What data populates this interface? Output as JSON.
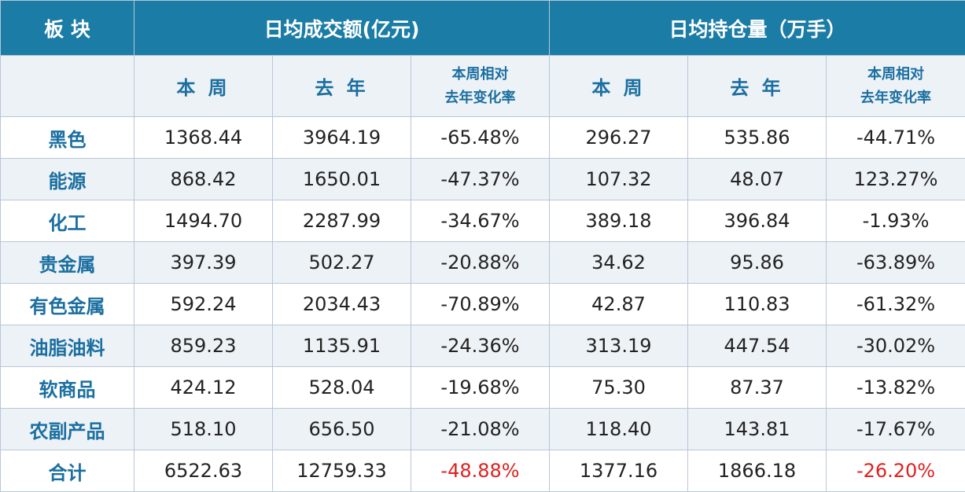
{
  "header": {
    "sector": "板 块",
    "volume_group": "日均成交额(亿元)",
    "oi_group": "日均持仓量（万手）"
  },
  "subheader": {
    "this_week": "本 周",
    "last_year": "去 年",
    "change_line1": "本周相对",
    "change_line2": "去年变化率"
  },
  "rows": [
    {
      "sector": "黑色",
      "vol_week": "1368.44",
      "vol_last": "3964.19",
      "vol_chg": "-65.48%",
      "oi_week": "296.27",
      "oi_last": "535.86",
      "oi_chg": "-44.71%"
    },
    {
      "sector": "能源",
      "vol_week": "868.42",
      "vol_last": "1650.01",
      "vol_chg": "-47.37%",
      "oi_week": "107.32",
      "oi_last": "48.07",
      "oi_chg": "123.27%"
    },
    {
      "sector": "化工",
      "vol_week": "1494.70",
      "vol_last": "2287.99",
      "vol_chg": "-34.67%",
      "oi_week": "389.18",
      "oi_last": "396.84",
      "oi_chg": "-1.93%"
    },
    {
      "sector": "贵金属",
      "vol_week": "397.39",
      "vol_last": "502.27",
      "vol_chg": "-20.88%",
      "oi_week": "34.62",
      "oi_last": "95.86",
      "oi_chg": "-63.89%"
    },
    {
      "sector": "有色金属",
      "vol_week": "592.24",
      "vol_last": "2034.43",
      "vol_chg": "-70.89%",
      "oi_week": "42.87",
      "oi_last": "110.83",
      "oi_chg": "-61.32%"
    },
    {
      "sector": "油脂油料",
      "vol_week": "859.23",
      "vol_last": "1135.91",
      "vol_chg": "-24.36%",
      "oi_week": "313.19",
      "oi_last": "447.54",
      "oi_chg": "-30.02%"
    },
    {
      "sector": "软商品",
      "vol_week": "424.12",
      "vol_last": "528.04",
      "vol_chg": "-19.68%",
      "oi_week": "75.30",
      "oi_last": "87.37",
      "oi_chg": "-13.82%"
    },
    {
      "sector": "农副产品",
      "vol_week": "518.10",
      "vol_last": "656.50",
      "vol_chg": "-21.08%",
      "oi_week": "118.40",
      "oi_last": "143.81",
      "oi_chg": "-17.67%"
    },
    {
      "sector": "合计",
      "vol_week": "6522.63",
      "vol_last": "12759.33",
      "vol_chg": "-48.88%",
      "oi_week": "1377.16",
      "oi_last": "1866.18",
      "oi_chg": "-26.20%"
    }
  ],
  "colors": {
    "header_bg": "#1b7ca6",
    "accent_text": "#1b6fa0",
    "alt_row_bg": "#edf2f7",
    "total_change": "#e02020"
  }
}
